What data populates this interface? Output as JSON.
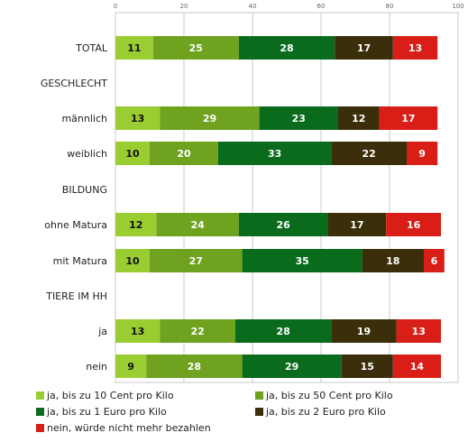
{
  "chart_data": {
    "type": "bar",
    "orientation": "horizontal",
    "stacked": true,
    "xlim": [
      0,
      100
    ],
    "x_ticks": [
      "0",
      "20",
      "40",
      "60",
      "80",
      "100"
    ],
    "grid": true,
    "legend_position": "bottom",
    "categories": [
      "TOTAL",
      "GESCHLECHT",
      "männlich",
      "weiblich",
      "BILDUNG",
      "ohne Matura",
      "mit Matura",
      "TIERE IM HH",
      "ja",
      "nein"
    ],
    "series": [
      {
        "name": "ja, bis zu 10 Cent pro Kilo",
        "color": "#9acd32",
        "text_color": "#111111",
        "values": [
          11,
          null,
          13,
          10,
          null,
          12,
          10,
          null,
          13,
          9
        ]
      },
      {
        "name": "ja, bis zu 50 Cent pro Kilo",
        "color": "#6ea21f",
        "text_color": "#ffffff",
        "values": [
          25,
          null,
          29,
          20,
          null,
          24,
          27,
          null,
          22,
          28
        ]
      },
      {
        "name": "ja, bis zu 1 Euro pro Kilo",
        "color": "#0a6b1d",
        "text_color": "#ffffff",
        "values": [
          28,
          null,
          23,
          33,
          null,
          26,
          35,
          null,
          28,
          29
        ]
      },
      {
        "name": "ja, bis zu 2 Euro pro Kilo",
        "color": "#3a2e0b",
        "text_color": "#ffffff",
        "values": [
          17,
          null,
          12,
          22,
          null,
          17,
          18,
          null,
          19,
          15
        ]
      },
      {
        "name": "nein, würde nicht mehr bezahlen",
        "color": "#d81e16",
        "text_color": "#ffffff",
        "values": [
          13,
          null,
          17,
          9,
          null,
          16,
          6,
          null,
          13,
          14
        ]
      }
    ]
  }
}
